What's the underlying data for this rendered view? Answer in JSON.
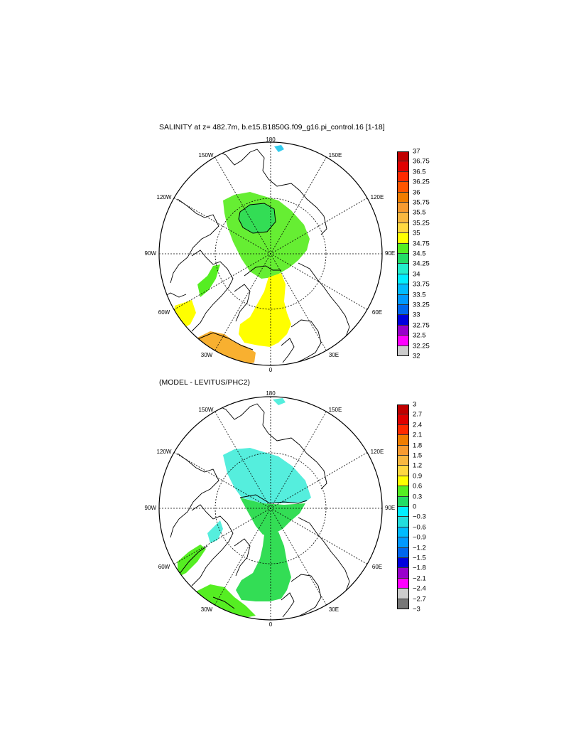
{
  "panels": [
    {
      "title": "SALINITY at z= 482.7m, b.e15.B1850G.f09_g16.pi_control.16 [1-18]",
      "lon_labels": {
        "top": "180",
        "bottom": "0",
        "left": "90W",
        "right": "90E",
        "ul": "150W",
        "ur": "150E",
        "ml_upper": "120W",
        "mr_upper": "120E",
        "ml_lower": "60W",
        "mr_lower": "60E",
        "ll": "30W",
        "lr": "30E"
      },
      "colorbar": {
        "labels": [
          "37",
          "36.75",
          "36.5",
          "36.25",
          "36",
          "35.75",
          "35.5",
          "35.25",
          "35",
          "34.75",
          "34.5",
          "34.25",
          "34",
          "33.75",
          "33.5",
          "33.25",
          "33",
          "32.75",
          "32.5",
          "32.25",
          "32"
        ],
        "colors": [
          "#c00000",
          "#e00000",
          "#ff2a00",
          "#ff5500",
          "#f07d00",
          "#f89b30",
          "#f8b840",
          "#ffd840",
          "#ffff00",
          "#55ee22",
          "#22dd66",
          "#22eecc",
          "#00eeff",
          "#00bbff",
          "#0099ff",
          "#0066ee",
          "#0000dd",
          "#9900cc",
          "#ff00ff",
          "#cccccc"
        ]
      }
    },
    {
      "title": "(MODEL - LEVITUS/PHC2)",
      "lon_labels": {
        "top": "180",
        "bottom": "0",
        "left": "90W",
        "right": "90E",
        "ul": "150W",
        "ur": "150E",
        "ml_upper": "120W",
        "mr_upper": "120E",
        "ml_lower": "60W",
        "mr_lower": "60E",
        "ll": "30W",
        "lr": "30E"
      },
      "colorbar": {
        "labels": [
          "3",
          "2.7",
          "2.4",
          "2.1",
          "1.8",
          "1.5",
          "1.2",
          "0.9",
          "0.6",
          "0.3",
          "0",
          "−0.3",
          "−0.6",
          "−0.9",
          "−1.2",
          "−1.5",
          "−1.8",
          "−2.1",
          "−2.4",
          "−2.7",
          "−3"
        ],
        "colors": [
          "#c00000",
          "#e00000",
          "#ff2a00",
          "#f07d00",
          "#f89b30",
          "#f8b840",
          "#ffd840",
          "#ffff00",
          "#55ee22",
          "#22dd66",
          "#00eeff",
          "#22dddd",
          "#00bbff",
          "#0099ff",
          "#0066ee",
          "#0000dd",
          "#9900cc",
          "#ff00ff",
          "#cccccc",
          "#777777"
        ]
      }
    }
  ],
  "field_colors": {
    "green_dark": "#33dd55",
    "green_light": "#66ee33",
    "yellow": "#ffff00",
    "orange": "#f8b030",
    "cyan": "#55eedd",
    "contour": "#000000",
    "coast": "#000000"
  }
}
